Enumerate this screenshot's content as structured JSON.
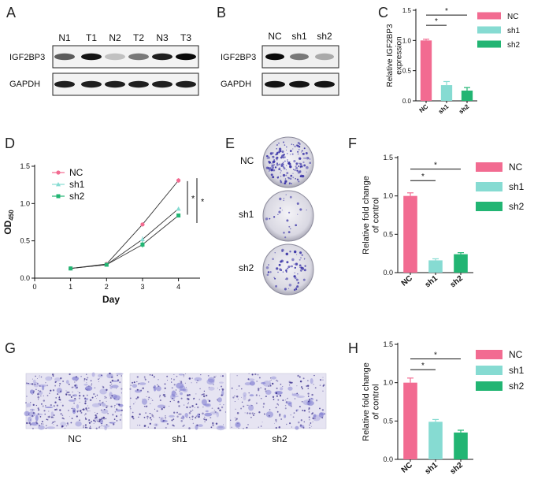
{
  "panels": {
    "A": {
      "label": "A",
      "lanes": [
        "N1",
        "T1",
        "N2",
        "T2",
        "N3",
        "T3"
      ],
      "rows": [
        "IGF2BP3",
        "GAPDH"
      ],
      "band_intensity": {
        "IGF2BP3": [
          0.6,
          0.95,
          0.1,
          0.45,
          0.9,
          1.0
        ],
        "GAPDH": [
          0.9,
          0.9,
          0.9,
          0.9,
          0.9,
          0.9
        ]
      }
    },
    "B": {
      "label": "B",
      "lanes": [
        "NC",
        "sh1",
        "sh2"
      ],
      "rows": [
        "IGF2BP3",
        "GAPDH"
      ],
      "band_intensity": {
        "IGF2BP3": [
          1.0,
          0.45,
          0.2
        ],
        "GAPDH": [
          0.95,
          0.95,
          0.95
        ]
      }
    },
    "C": {
      "label": "C"
    },
    "D": {
      "label": "D"
    },
    "E": {
      "label": "E",
      "dishes": [
        "NC",
        "sh1",
        "sh2"
      ],
      "density": [
        0.9,
        0.1,
        0.35
      ]
    },
    "F": {
      "label": "F"
    },
    "G": {
      "label": "G",
      "fields": [
        "NC",
        "sh1",
        "sh2"
      ],
      "density": [
        0.9,
        0.6,
        0.45
      ]
    },
    "H": {
      "label": "H"
    }
  },
  "colors": {
    "NC": "#f26b91",
    "sh1": "#86dbd2",
    "sh2": "#22b573",
    "line": "#333333"
  },
  "legend": [
    "NC",
    "sh1",
    "sh2"
  ],
  "chart_data": [
    {
      "id": "C",
      "type": "bar",
      "categories": [
        "NC",
        "sh1",
        "sh2"
      ],
      "values": [
        1.0,
        0.26,
        0.17
      ],
      "errors": [
        0.02,
        0.06,
        0.05
      ],
      "ylabel": "Relative IGF2BP3 expression",
      "ylabel_lines": [
        "Relative IGF2BP3",
        "expression"
      ],
      "ylim": [
        0,
        1.5
      ],
      "yticks": [
        "0.0",
        "0.5",
        "1.0",
        "1.5"
      ],
      "significance": [
        "*",
        "*"
      ],
      "legend": [
        "NC",
        "sh1",
        "sh2"
      ]
    },
    {
      "id": "D",
      "type": "line",
      "x": [
        1,
        2,
        3,
        4
      ],
      "xticks": [
        "0",
        "1",
        "2",
        "3",
        "4"
      ],
      "series": [
        {
          "name": "NC",
          "values": [
            0.13,
            0.19,
            0.72,
            1.31
          ],
          "errors": [
            0.01,
            0.01,
            0.02,
            0.03
          ]
        },
        {
          "name": "sh1",
          "values": [
            0.13,
            0.18,
            0.52,
            0.93
          ],
          "errors": [
            0.01,
            0.01,
            0.04,
            0.02
          ]
        },
        {
          "name": "sh2",
          "values": [
            0.13,
            0.18,
            0.45,
            0.84
          ],
          "errors": [
            0.01,
            0.01,
            0.04,
            0.02
          ]
        }
      ],
      "xlabel": "Day",
      "ylabel": "OD",
      "ylabel_sub": "450",
      "xlim": [
        0,
        4.6
      ],
      "ylim": [
        0,
        1.5
      ],
      "yticks": [
        "0.0",
        "0.5",
        "1.0",
        "1.5"
      ],
      "significance": [
        "*",
        "*"
      ],
      "legend": [
        "NC",
        "sh1",
        "sh2"
      ]
    },
    {
      "id": "F",
      "type": "bar",
      "categories": [
        "NC",
        "sh1",
        "sh2"
      ],
      "values": [
        1.0,
        0.16,
        0.24
      ],
      "errors": [
        0.04,
        0.02,
        0.02
      ],
      "ylabel": "Relative fold change of control",
      "ylabel_lines": [
        "Relative fold change",
        "of control"
      ],
      "ylim": [
        0,
        1.5
      ],
      "yticks": [
        "0.0",
        "0.5",
        "1.0",
        "1.5"
      ],
      "significance": [
        "*",
        "*"
      ],
      "legend": [
        "NC",
        "sh1",
        "sh2"
      ]
    },
    {
      "id": "H",
      "type": "bar",
      "categories": [
        "NC",
        "sh1",
        "sh2"
      ],
      "values": [
        1.0,
        0.49,
        0.35
      ],
      "errors": [
        0.06,
        0.03,
        0.03
      ],
      "ylabel": "Relative fold change of control",
      "ylabel_lines": [
        "Relative fold change",
        "of control"
      ],
      "ylim": [
        0,
        1.5
      ],
      "yticks": [
        "0.0",
        "0.5",
        "1.0",
        "1.5"
      ],
      "significance": [
        "*",
        "*"
      ],
      "legend": [
        "NC",
        "sh1",
        "sh2"
      ]
    }
  ]
}
